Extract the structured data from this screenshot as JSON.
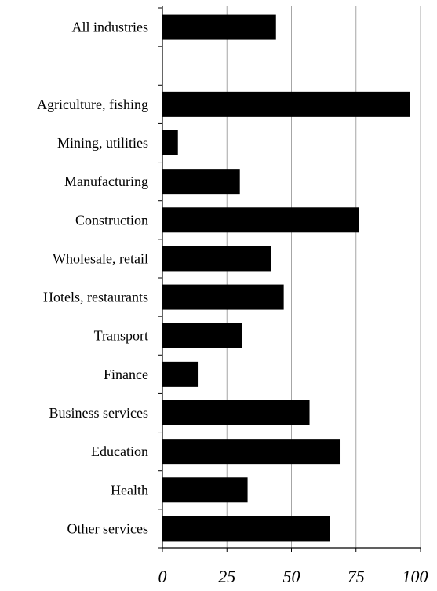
{
  "chart_data": {
    "type": "bar",
    "orientation": "horizontal",
    "categories": [
      "All industries",
      "",
      "Agriculture, fishing",
      "Mining, utilities",
      "Manufacturing",
      "Construction",
      "Wholesale, retail",
      "Hotels, restaurants",
      "Transport",
      "Finance",
      "Business services",
      "Education",
      "Health",
      "Other services"
    ],
    "values": [
      44,
      null,
      96,
      6,
      30,
      76,
      42,
      47,
      31,
      14,
      57,
      69,
      33,
      65
    ],
    "title": "",
    "xlabel": "",
    "ylabel": "",
    "xlim": [
      0,
      100
    ],
    "xticks": [
      0,
      25,
      50,
      75,
      100
    ],
    "xtick_labels": [
      "0",
      "25",
      "50",
      "75",
      "100"
    ],
    "grid": "vertical lines",
    "bar_color": "#000000",
    "grid_color": "#a6a6a6"
  }
}
